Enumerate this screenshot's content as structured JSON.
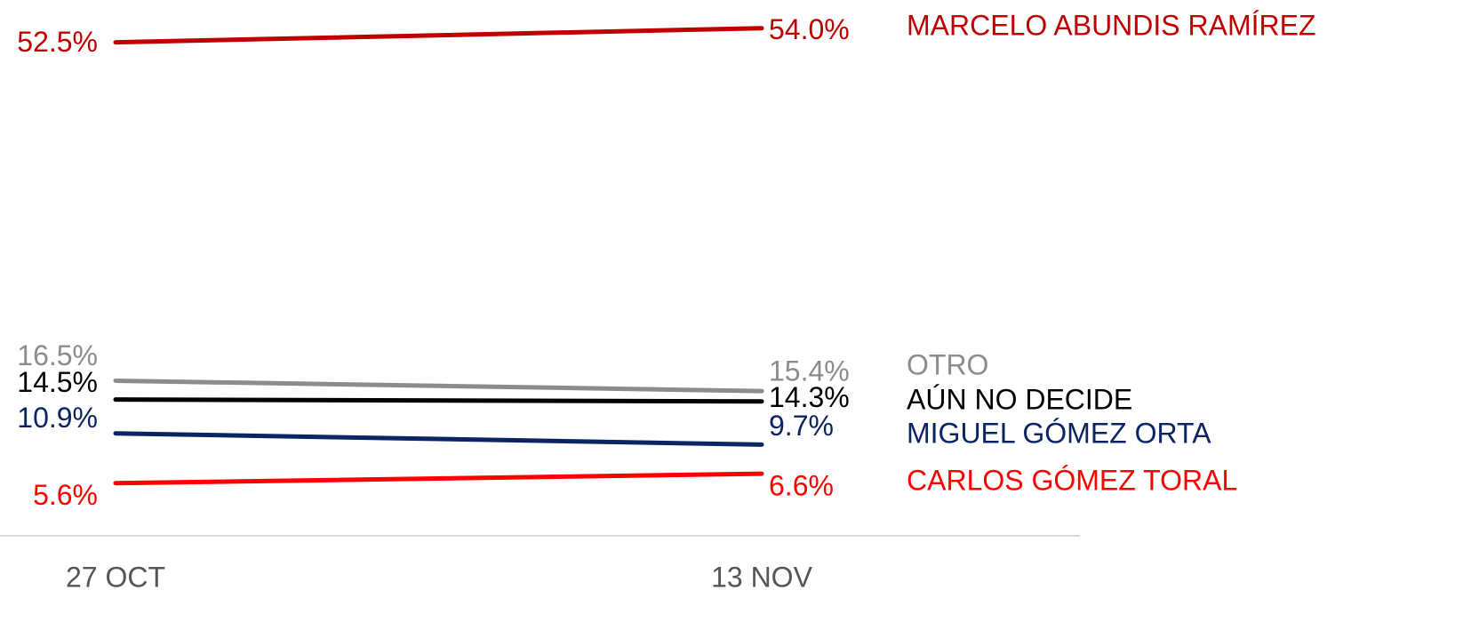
{
  "chart_data": {
    "type": "line",
    "categories": [
      "27 OCT",
      "13 NOV"
    ],
    "ylim": [
      0,
      57
    ],
    "series": [
      {
        "name": "MARCELO ABUNDIS RAMÍREZ",
        "color": "#c00000",
        "values": [
          52.5,
          54.0
        ],
        "value_labels": [
          "52.5%",
          "54.0%"
        ]
      },
      {
        "name": "OTRO",
        "color": "#8c8c8c",
        "values": [
          16.5,
          15.4
        ],
        "value_labels": [
          "16.5%",
          "15.4%"
        ]
      },
      {
        "name": "AÚN NO DECIDE",
        "color": "#000000",
        "values": [
          14.5,
          14.3
        ],
        "value_labels": [
          "14.5%",
          "14.3%"
        ]
      },
      {
        "name": "MIGUEL GÓMEZ ORTA",
        "color": "#0b2463",
        "values": [
          10.9,
          9.7
        ],
        "value_labels": [
          "10.9%",
          "9.7%"
        ]
      },
      {
        "name": "CARLOS GÓMEZ TORAL",
        "color": "#ff0000",
        "values": [
          5.6,
          6.6
        ],
        "value_labels": [
          "5.6%",
          "6.6%"
        ]
      }
    ]
  }
}
